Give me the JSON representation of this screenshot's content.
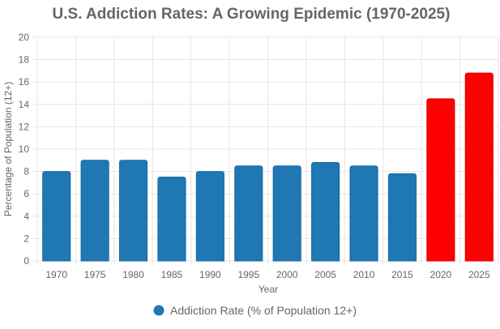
{
  "chart_data": {
    "type": "bar",
    "title": "U.S. Addiction Rates: A Growing Epidemic (1970-2025)",
    "xlabel": "Year",
    "ylabel": "Percentage of Population (12+)",
    "categories": [
      "1970",
      "1975",
      "1980",
      "1985",
      "1990",
      "1995",
      "2000",
      "2005",
      "2010",
      "2015",
      "2020",
      "2025"
    ],
    "series": [
      {
        "name": "Addiction Rate (% of Population 12+)",
        "values": [
          8.0,
          9.0,
          9.0,
          7.5,
          8.0,
          8.5,
          8.5,
          8.8,
          8.5,
          7.8,
          14.5,
          16.8
        ],
        "colors": [
          "#1f77b4",
          "#1f77b4",
          "#1f77b4",
          "#1f77b4",
          "#1f77b4",
          "#1f77b4",
          "#1f77b4",
          "#1f77b4",
          "#1f77b4",
          "#1f77b4",
          "#ff0000",
          "#ff0000"
        ]
      }
    ],
    "ylim": [
      0,
      20
    ],
    "yticks": [
      "0",
      "2",
      "4",
      "6",
      "8",
      "10",
      "12",
      "14",
      "16",
      "18",
      "20"
    ],
    "grid": true,
    "legend_position": "bottom-center",
    "legend_color": "#1f77b4"
  }
}
